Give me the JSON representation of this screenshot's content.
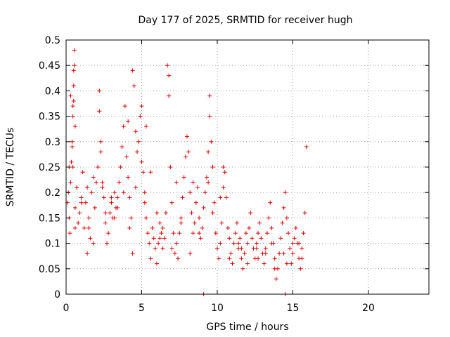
{
  "chart_data": {
    "type": "scatter",
    "title": "Day 177 of 2025, SRMTID for receiver hugh",
    "xlabel": "GPS time / hours",
    "ylabel": "SRMTID / TECUs",
    "xlim": [
      0,
      24
    ],
    "ylim": [
      0,
      0.5
    ],
    "x_ticks": [
      0,
      5,
      10,
      15,
      20
    ],
    "x_tick_labels": [
      "0",
      "5",
      "10",
      "15",
      "20"
    ],
    "y_ticks": [
      0,
      0.05,
      0.1,
      0.15,
      0.2,
      0.25,
      0.3,
      0.35,
      0.4,
      0.45,
      0.5
    ],
    "y_tick_labels": [
      "0",
      "0.05",
      "0.1",
      "0.15",
      "0.2",
      "0.25",
      "0.3",
      "0.35",
      "0.4",
      "0.45",
      "0.5"
    ],
    "grid": true,
    "marker": "+",
    "marker_color": "#e00000",
    "series": [
      {
        "name": "SRMTID",
        "x": [
          0.1,
          0.15,
          0.2,
          0.25,
          0.3,
          0.35,
          0.4,
          0.45,
          0.5,
          0.55,
          0.6,
          0.3,
          0.4,
          0.45,
          0.5,
          0.55,
          0.45,
          0.5,
          0.6,
          0.7,
          0.8,
          0.9,
          1.0,
          1.1,
          1.2,
          1.3,
          1.4,
          1.5,
          1.6,
          1.7,
          1.8,
          1.9,
          2.0,
          2.1,
          2.2,
          2.2,
          2.3,
          2.3,
          2.4,
          2.5,
          2.6,
          2.7,
          2.8,
          2.9,
          3.0,
          3.1,
          3.2,
          3.3,
          3.4,
          3.5,
          3.6,
          3.7,
          3.8,
          3.9,
          4.0,
          4.1,
          4.2,
          4.3,
          4.4,
          4.4,
          4.5,
          4.6,
          4.7,
          4.8,
          4.9,
          5.0,
          5.0,
          5.1,
          5.2,
          5.3,
          5.4,
          5.5,
          5.6,
          5.7,
          5.8,
          5.9,
          6.0,
          6.1,
          6.2,
          6.3,
          6.4,
          6.5,
          6.6,
          6.7,
          6.8,
          6.8,
          6.9,
          7.0,
          7.1,
          7.2,
          7.3,
          7.4,
          7.5,
          7.6,
          7.7,
          7.8,
          7.9,
          8.0,
          8.1,
          8.2,
          8.3,
          8.4,
          8.5,
          8.6,
          8.7,
          8.8,
          8.9,
          9.0,
          9.1,
          9.2,
          9.3,
          9.4,
          9.5,
          9.5,
          9.6,
          9.7,
          9.8,
          9.9,
          10.0,
          10.1,
          10.2,
          10.3,
          10.4,
          10.5,
          10.6,
          10.7,
          10.8,
          10.9,
          11.0,
          11.1,
          11.2,
          11.3,
          11.4,
          11.5,
          11.6,
          11.7,
          11.8,
          11.9,
          12.0,
          12.1,
          12.2,
          12.3,
          12.4,
          12.5,
          12.6,
          12.7,
          12.8,
          12.9,
          13.0,
          13.1,
          13.2,
          13.3,
          13.4,
          13.5,
          13.6,
          13.7,
          13.8,
          13.9,
          14.0,
          14.1,
          14.2,
          14.3,
          14.4,
          14.5,
          14.6,
          14.7,
          14.8,
          14.9,
          15.0,
          15.1,
          15.2,
          15.3,
          15.4,
          15.5,
          15.6,
          15.7,
          15.8,
          15.9,
          0.2,
          0.6,
          1.0,
          1.4,
          1.8,
          2.6,
          3.0,
          3.4,
          3.8,
          4.2,
          4.6,
          5.2,
          5.6,
          6.0,
          6.4,
          7.0,
          7.6,
          8.2,
          8.8,
          9.4,
          10.2,
          10.8,
          11.4,
          12.0,
          12.6,
          13.2,
          13.8,
          14.4,
          15.0,
          15.6,
          0.7,
          1.5,
          2.4,
          3.2,
          4.1,
          5.3,
          6.2,
          7.3,
          8.4,
          9.7,
          10.4,
          11.6,
          12.7,
          13.6,
          14.6,
          15.4,
          9.1,
          14.5
        ],
        "y": [
          0.18,
          0.2,
          0.15,
          0.12,
          0.22,
          0.26,
          0.3,
          0.37,
          0.44,
          0.48,
          0.33,
          0.39,
          0.29,
          0.25,
          0.41,
          0.45,
          0.35,
          0.38,
          0.17,
          0.21,
          0.14,
          0.16,
          0.19,
          0.24,
          0.13,
          0.18,
          0.21,
          0.15,
          0.11,
          0.2,
          0.23,
          0.17,
          0.22,
          0.25,
          0.4,
          0.36,
          0.3,
          0.28,
          0.21,
          0.19,
          0.14,
          0.1,
          0.12,
          0.16,
          0.18,
          0.15,
          0.2,
          0.17,
          0.19,
          0.22,
          0.25,
          0.29,
          0.33,
          0.37,
          0.27,
          0.23,
          0.19,
          0.15,
          0.08,
          0.44,
          0.41,
          0.32,
          0.28,
          0.3,
          0.35,
          0.37,
          0.26,
          0.24,
          0.2,
          0.15,
          0.12,
          0.1,
          0.07,
          0.13,
          0.11,
          0.09,
          0.06,
          0.1,
          0.14,
          0.12,
          0.09,
          0.11,
          0.16,
          0.45,
          0.43,
          0.39,
          0.25,
          0.18,
          0.12,
          0.08,
          0.1,
          0.07,
          0.12,
          0.15,
          0.19,
          0.23,
          0.27,
          0.31,
          0.28,
          0.2,
          0.16,
          0.12,
          0.14,
          0.18,
          0.21,
          0.15,
          0.11,
          0.13,
          0.17,
          0.2,
          0.23,
          0.28,
          0.35,
          0.39,
          0.3,
          0.25,
          0.18,
          0.12,
          0.09,
          0.07,
          0.1,
          0.14,
          0.21,
          0.24,
          0.19,
          0.13,
          0.11,
          0.08,
          0.06,
          0.1,
          0.12,
          0.14,
          0.09,
          0.11,
          0.07,
          0.05,
          0.08,
          0.12,
          0.1,
          0.13,
          0.16,
          0.11,
          0.09,
          0.07,
          0.1,
          0.12,
          0.14,
          0.11,
          0.08,
          0.06,
          0.09,
          0.12,
          0.15,
          0.18,
          0.13,
          0.1,
          0.07,
          0.03,
          0.05,
          0.08,
          0.11,
          0.14,
          0.17,
          0.2,
          0.15,
          0.12,
          0.09,
          0.06,
          0.08,
          0.11,
          0.13,
          0.1,
          0.07,
          0.05,
          0.09,
          0.12,
          0.16,
          0.29,
          0.25,
          0.13,
          0.18,
          0.08,
          0.1,
          0.16,
          0.19,
          0.17,
          0.2,
          0.13,
          0.21,
          0.18,
          0.24,
          0.16,
          0.13,
          0.09,
          0.14,
          0.08,
          0.12,
          0.22,
          0.19,
          0.07,
          0.1,
          0.06,
          0.09,
          0.08,
          0.05,
          0.08,
          0.1,
          0.07,
          0.21,
          0.13,
          0.22,
          0.15,
          0.34,
          0.33,
          0.11,
          0.22,
          0.22,
          0.16,
          0.25,
          0.09,
          0.07,
          0.1,
          0.06,
          0.1,
          0.0,
          0.0
        ]
      }
    ]
  }
}
